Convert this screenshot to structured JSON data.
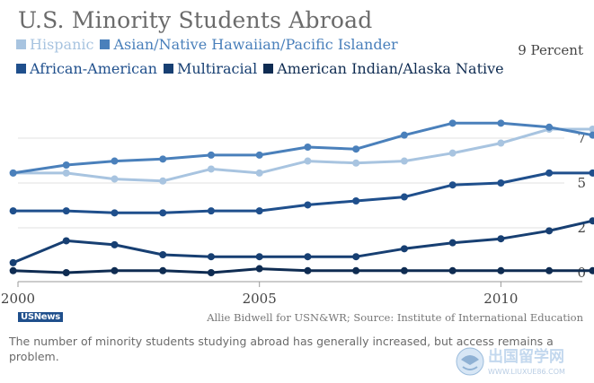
{
  "title": "U.S. Minority Students Abroad",
  "unit_label": "9 Percent",
  "logo_text": "USNews",
  "source": "Allie Bidwell for USN&WR; Source: Institute of International Education",
  "caption": "The number of minority students studying abroad has generally increased, but access remains a problem.",
  "watermark": {
    "text": "出国留学网",
    "url": "WWW.LIUXUE86.COM"
  },
  "chart_data": {
    "type": "line",
    "title": "U.S. Minority Students Abroad",
    "xlabel": "",
    "ylabel": "Percent",
    "xlim": [
      2000,
      2011.5
    ],
    "ylim": [
      0,
      9
    ],
    "grid": true,
    "legend_position": "top",
    "x": [
      1999.9,
      2001,
      2002,
      2003,
      2004,
      2005,
      2006,
      2007,
      2008,
      2009,
      2010,
      2011,
      2011.9
    ],
    "x_ticks": [
      {
        "value": 2000,
        "label": "2000"
      },
      {
        "value": 2005,
        "label": "2005"
      },
      {
        "value": 2010,
        "label": "2010"
      }
    ],
    "y_ticks": [
      {
        "value": 0,
        "label": "0"
      },
      {
        "value": 2.25,
        "label": "2"
      },
      {
        "value": 4.5,
        "label": "5"
      },
      {
        "value": 6.75,
        "label": "7"
      }
    ],
    "series": [
      {
        "name": "Hispanic",
        "color": "#a8c4e0",
        "values": [
          5.0,
          5.0,
          4.7,
          4.6,
          5.2,
          5.0,
          5.6,
          5.5,
          5.6,
          6.0,
          6.5,
          7.2,
          7.2
        ]
      },
      {
        "name": "Asian/Native Hawaiian/Pacific Islander",
        "color": "#4a80bb",
        "values": [
          5.0,
          5.4,
          5.6,
          5.7,
          5.9,
          5.9,
          6.3,
          6.2,
          6.9,
          7.5,
          7.5,
          7.3,
          6.9
        ]
      },
      {
        "name": "African-American",
        "color": "#1f4f8c",
        "values": [
          3.1,
          3.1,
          3.0,
          3.0,
          3.1,
          3.1,
          3.4,
          3.6,
          3.8,
          4.4,
          4.5,
          5.0,
          5.0
        ]
      },
      {
        "name": "Multiracial",
        "color": "#173f72",
        "values": [
          0.5,
          1.6,
          1.4,
          0.9,
          0.8,
          0.8,
          0.8,
          0.8,
          1.2,
          1.5,
          1.7,
          2.1,
          2.6
        ]
      },
      {
        "name": "American Indian/Alaska Native",
        "color": "#0f2c52",
        "values": [
          0.1,
          0.0,
          0.1,
          0.1,
          0.0,
          0.2,
          0.1,
          0.1,
          0.1,
          0.1,
          0.1,
          0.1,
          0.1
        ]
      }
    ]
  }
}
